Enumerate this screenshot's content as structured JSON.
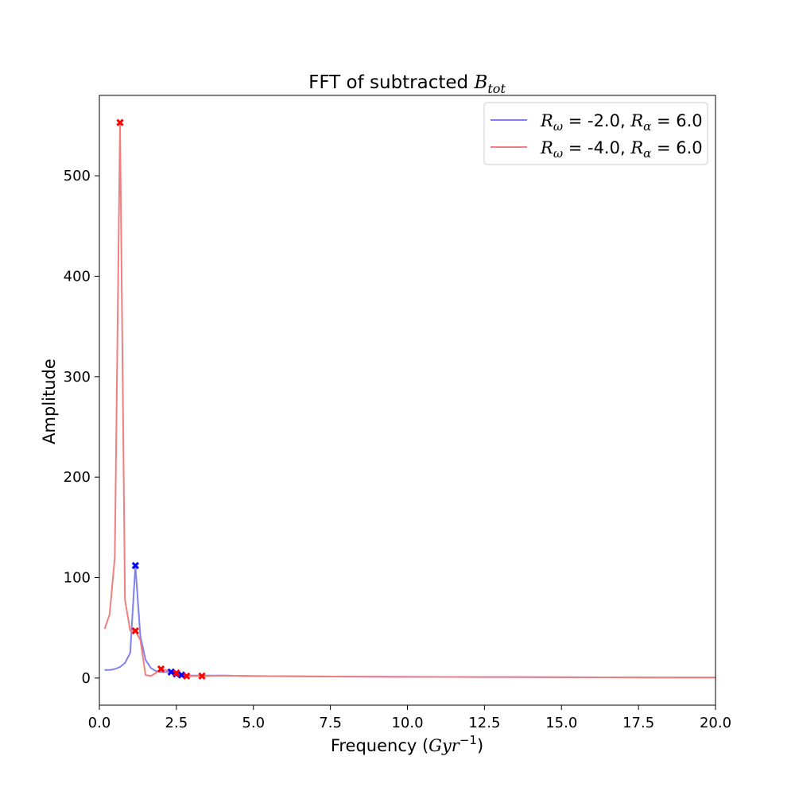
{
  "chart_data": {
    "type": "line",
    "title": {
      "prefix": "FFT of subtracted ",
      "symbol": "B",
      "subscript": "tot"
    },
    "xlabel": {
      "prefix": "Frequency (",
      "symbol": "Gyr",
      "superscript": "−1",
      "suffix": ")"
    },
    "ylabel": "Amplitude",
    "xlim": [
      0,
      20
    ],
    "ylim": [
      -27,
      580
    ],
    "xticks": [
      0.0,
      2.5,
      5.0,
      7.5,
      10.0,
      12.5,
      15.0,
      17.5,
      20.0
    ],
    "xtick_labels": [
      "0.0",
      "2.5",
      "5.0",
      "7.5",
      "10.0",
      "12.5",
      "15.0",
      "17.5",
      "20.0"
    ],
    "yticks": [
      0,
      100,
      200,
      300,
      400,
      500
    ],
    "ytick_labels": [
      "0",
      "100",
      "200",
      "300",
      "400",
      "500"
    ],
    "grid": false,
    "legend_position": "top-right",
    "series": [
      {
        "name": "R_ω = -2.0, R_α = 6.0",
        "legend": {
          "r1": "R",
          "s1": "ω",
          "v1": " = -2.0, ",
          "r2": "R",
          "s2": "α",
          "v2": " = 6.0"
        },
        "color": "#8080f0",
        "marker_color": "#0000ff",
        "x": [
          0.17,
          0.33,
          0.5,
          0.67,
          0.83,
          1.0,
          1.17,
          1.33,
          1.5,
          1.67,
          1.83,
          2.0,
          2.17,
          2.33,
          2.5,
          2.67,
          2.83,
          3.0,
          3.5,
          4.0,
          5.0,
          7.5,
          10.0,
          12.5,
          15.0,
          17.5,
          20.0
        ],
        "y": [
          8,
          8,
          9,
          11,
          15,
          25,
          112,
          42,
          18,
          10,
          7,
          6,
          6,
          6,
          4,
          3,
          3,
          2.5,
          2.5,
          2.5,
          2,
          1.5,
          1.2,
          1,
          0.8,
          0.6,
          0.5
        ],
        "peaks_x": [
          1.17,
          2.33,
          2.5,
          2.67
        ],
        "peaks_y": [
          112,
          6,
          4,
          3
        ]
      },
      {
        "name": "R_ω = -4.0, R_α = 6.0",
        "legend": {
          "r1": "R",
          "s1": "ω",
          "v1": " = -4.0, ",
          "r2": "R",
          "s2": "α",
          "v2": " = 6.0"
        },
        "color": "#f08080",
        "marker_color": "#ff0000",
        "x": [
          0.17,
          0.33,
          0.5,
          0.67,
          0.83,
          1.0,
          1.17,
          1.33,
          1.5,
          1.67,
          1.83,
          2.0,
          2.17,
          2.33,
          2.5,
          2.67,
          2.83,
          3.0,
          3.17,
          3.33,
          3.5,
          4.0,
          5.0,
          7.5,
          10.0,
          12.5,
          15.0,
          17.5,
          20.0
        ],
        "y": [
          49,
          63,
          120,
          553,
          78,
          47,
          47,
          38,
          3,
          2,
          5,
          9,
          8,
          6,
          5,
          3,
          2,
          2,
          2,
          2,
          2,
          2.5,
          2,
          1.5,
          1.2,
          1,
          0.8,
          0.6,
          0.5
        ],
        "peaks_x": [
          0.67,
          1.17,
          2.0,
          2.5,
          2.83,
          3.33
        ],
        "peaks_y": [
          553,
          47,
          9,
          5,
          2,
          2
        ]
      }
    ]
  }
}
